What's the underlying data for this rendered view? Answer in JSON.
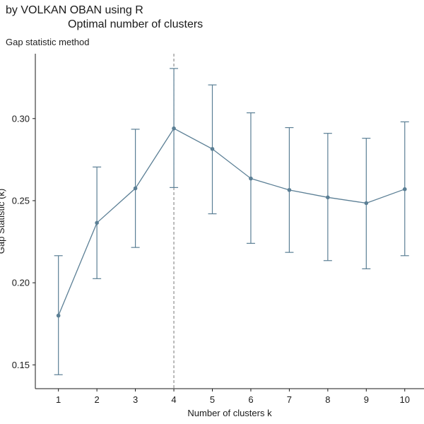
{
  "chart_data": {
    "type": "line",
    "title": "by VOLKAN OBAN using R",
    "title_line2": "Optimal number of clusters",
    "subtitle": "Gap statistic method",
    "xlabel": "Number of clusters k",
    "ylabel": "Gap Statistic (k)",
    "x": [
      1,
      2,
      3,
      4,
      5,
      6,
      7,
      8,
      9,
      10
    ],
    "series": [
      {
        "values": [
          0.18,
          0.2365,
          0.2575,
          0.294,
          0.2815,
          0.2635,
          0.2565,
          0.252,
          0.2485,
          0.257
        ],
        "error_low": [
          0.144,
          0.2025,
          0.2215,
          0.258,
          0.242,
          0.224,
          0.2185,
          0.2135,
          0.2085,
          0.2165
        ],
        "error_high": [
          0.2165,
          0.2705,
          0.2935,
          0.3305,
          0.3205,
          0.3035,
          0.2945,
          0.291,
          0.288,
          0.298
        ]
      }
    ],
    "optimal_k": 4,
    "xticks": [
      "1",
      "2",
      "3",
      "4",
      "5",
      "6",
      "7",
      "8",
      "9",
      "10"
    ],
    "yticks": [
      "0.15",
      "0.20",
      "0.25",
      "0.30"
    ],
    "ytick_values": [
      0.15,
      0.2,
      0.25,
      0.3
    ],
    "xlim": [
      0.4,
      10.5
    ],
    "ylim": [
      0.1355,
      0.3395
    ],
    "grid": false,
    "series_color": "#5b7f95",
    "vline_color": "#777777"
  }
}
